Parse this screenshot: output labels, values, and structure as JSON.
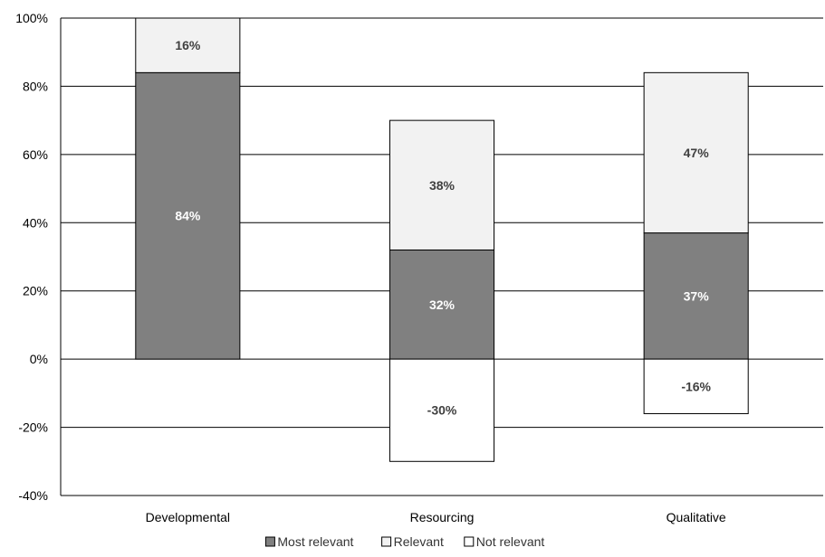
{
  "chart_data": {
    "type": "bar",
    "stacked": true,
    "title": "",
    "xlabel": "",
    "ylabel": "",
    "categories": [
      "Developmental",
      "Resourcing",
      "Qualitative"
    ],
    "ylim": [
      -40,
      100
    ],
    "yticks": [
      -40,
      -20,
      0,
      20,
      40,
      60,
      80,
      100
    ],
    "ytick_labels": [
      "-40%",
      "-20%",
      "0%",
      "20%",
      "40%",
      "60%",
      "80%",
      "100%"
    ],
    "grid": true,
    "legend_position": "bottom",
    "series": [
      {
        "name": "Most relevant",
        "values": [
          84,
          32,
          37
        ],
        "labels": [
          "84%",
          "32%",
          "37%"
        ],
        "color": "#808080",
        "label_color": "#ffffff"
      },
      {
        "name": "Relevant",
        "values": [
          16,
          38,
          47
        ],
        "labels": [
          "16%",
          "38%",
          "47%"
        ],
        "color": "#f2f2f2",
        "label_color": "#404040"
      },
      {
        "name": "Not relevant",
        "values": [
          null,
          -30,
          -16
        ],
        "labels": [
          null,
          "-30%",
          "-16%"
        ],
        "color": "#ffffff",
        "label_color": "#404040"
      }
    ]
  }
}
